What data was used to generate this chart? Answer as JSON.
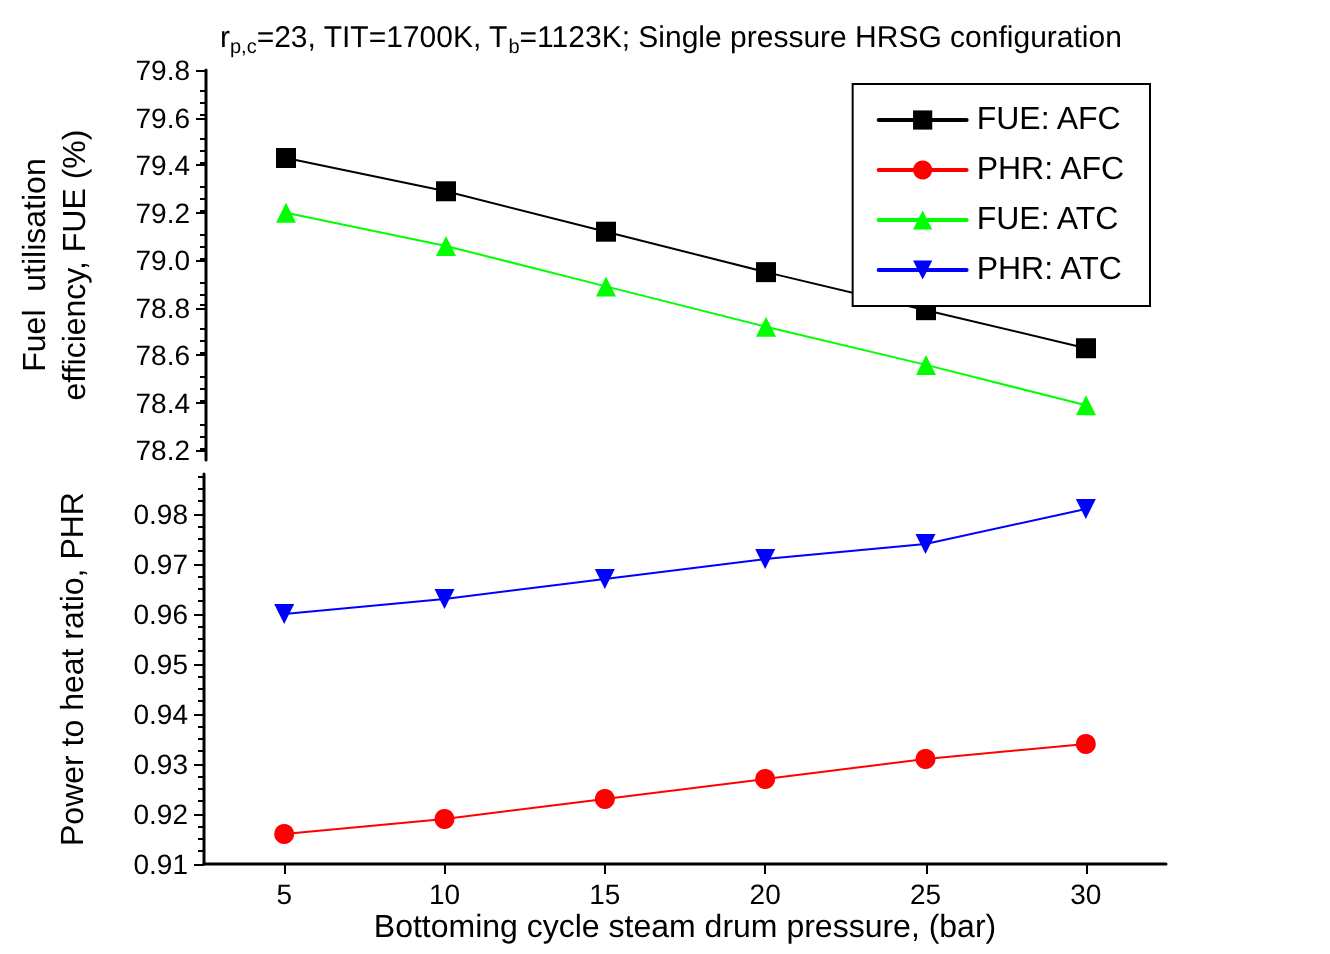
{
  "chart_data": [
    {
      "type": "line",
      "title": "r$_{p,c}$=23, TIT=1700K, T$_{b}$=1123K; Single pressure HRSG configuration",
      "ylabel": "Fuel  utilisation\nefficiency, FUE (%)",
      "x": [
        5,
        10,
        15,
        20,
        25,
        30
      ],
      "ylim": [
        78.16,
        79.8
      ],
      "yticks": [
        78.2,
        78.4,
        78.6,
        78.8,
        {
          "value": 79,
          "label": "79.0"
        },
        79.2,
        79.4,
        79.6,
        79.8
      ],
      "tick_labels": "y",
      "grid": false,
      "legend": "top right",
      "line_style": "solid",
      "series": [
        {
          "name": "FUE: AFC",
          "color": "#000000",
          "marker": "square",
          "values": [
            79.43,
            79.29,
            79.12,
            78.95,
            78.79,
            78.63
          ]
        },
        {
          "name": "FUE: ATC",
          "color": "#00ff00",
          "marker": "triangle",
          "values": [
            79.2,
            79.06,
            78.89,
            78.72,
            78.56,
            78.39
          ]
        }
      ]
    },
    {
      "type": "line",
      "xlabel": "Bottoming cycle steam drum pressure, (bar)",
      "ylabel": "Power to heat ratio, PHR",
      "x": [
        5,
        10,
        15,
        20,
        25,
        30
      ],
      "xlim": [
        2.5,
        32.5
      ],
      "xticks": [
        5,
        10,
        15,
        20,
        25,
        30
      ],
      "ylim": [
        0.91,
        0.988
      ],
      "yticks": [
        0.91,
        0.92,
        0.93,
        0.94,
        0.95,
        0.96,
        0.97,
        0.98
      ],
      "grid": false,
      "legend": "top right",
      "line_style": "solid",
      "series": [
        {
          "name": "PHR: AFC",
          "color": "#ff0000",
          "marker": "circle",
          "values": [
            0.916,
            0.919,
            0.923,
            0.927,
            0.931,
            0.934
          ]
        },
        {
          "name": "PHR: ATC",
          "color": "#0000ff",
          "marker": "triangle-down",
          "values": [
            0.96,
            0.963,
            0.967,
            0.971,
            0.974,
            0.981
          ]
        }
      ]
    }
  ]
}
